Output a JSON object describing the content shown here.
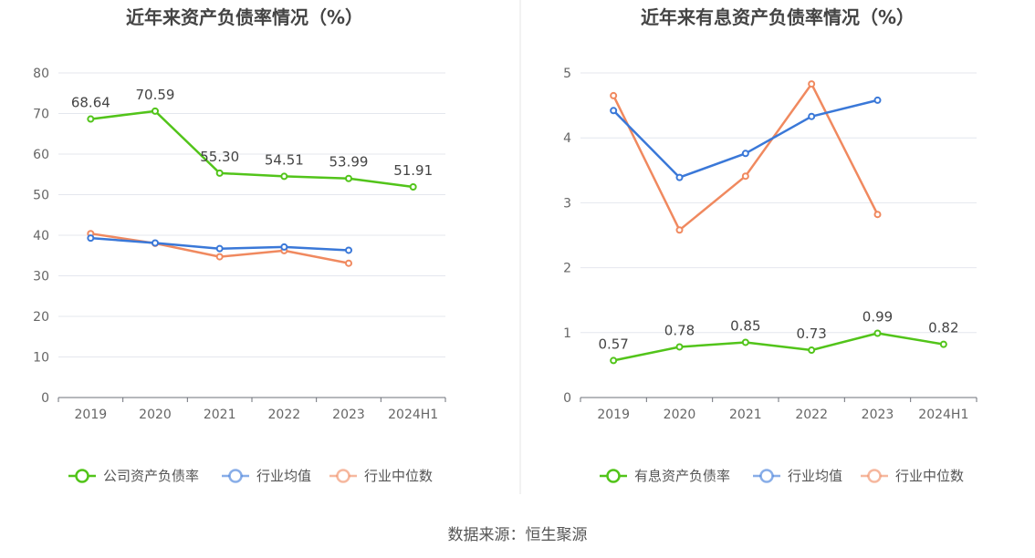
{
  "source_label": "数据来源：恒生聚源",
  "chart_data": [
    {
      "type": "line",
      "title": "近年来资产负债率情况（%）",
      "categories": [
        "2019",
        "2020",
        "2021",
        "2022",
        "2023",
        "2024H1"
      ],
      "ylim": [
        0,
        80
      ],
      "yticks": [
        0,
        10,
        20,
        30,
        40,
        50,
        60,
        70,
        80
      ],
      "grid": true,
      "legend_position": "bottom",
      "series": [
        {
          "name": "公司资产负债率",
          "color": "#52c41a",
          "labeled": true,
          "values": [
            68.64,
            70.59,
            55.3,
            54.51,
            53.99,
            51.91
          ],
          "labels": [
            "68.64",
            "70.59",
            "55.30",
            "54.51",
            "53.99",
            "51.91"
          ]
        },
        {
          "name": "行业均值",
          "color": "#3a78d8",
          "labeled": false,
          "values": [
            39.3,
            38.1,
            36.7,
            37.1,
            36.3,
            null
          ]
        },
        {
          "name": "行业中位数",
          "color": "#f0895f",
          "labeled": false,
          "values": [
            40.4,
            38.0,
            34.7,
            36.2,
            33.1,
            null
          ]
        }
      ]
    },
    {
      "type": "line",
      "title": "近年来有息资产负债率情况（%）",
      "categories": [
        "2019",
        "2020",
        "2021",
        "2022",
        "2023",
        "2024H1"
      ],
      "ylim": [
        0,
        5
      ],
      "yticks": [
        0,
        1,
        2,
        3,
        4,
        5
      ],
      "grid": true,
      "legend_position": "bottom",
      "series": [
        {
          "name": "有息资产负债率",
          "color": "#52c41a",
          "labeled": true,
          "values": [
            0.57,
            0.78,
            0.85,
            0.73,
            0.99,
            0.82
          ],
          "labels": [
            "0.57",
            "0.78",
            "0.85",
            "0.73",
            "0.99",
            "0.82"
          ]
        },
        {
          "name": "行业均值",
          "color": "#3a78d8",
          "labeled": false,
          "values": [
            4.42,
            3.39,
            3.76,
            4.33,
            4.58,
            null
          ]
        },
        {
          "name": "行业中位数",
          "color": "#f0895f",
          "labeled": false,
          "values": [
            4.65,
            2.58,
            3.41,
            4.83,
            2.82,
            null
          ]
        }
      ]
    }
  ]
}
